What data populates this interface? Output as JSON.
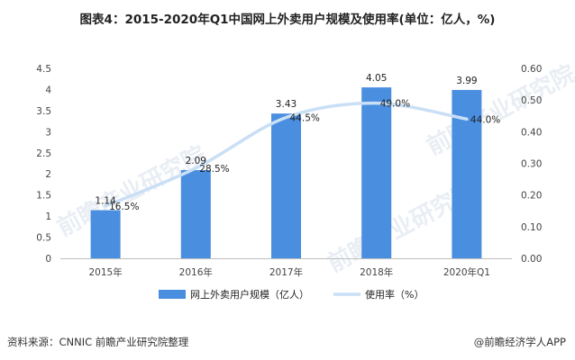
{
  "chart_data": {
    "type": "bar",
    "title": "图表4：2015-2020年Q1中国网上外卖用户规模及使用率(单位：亿人，%)",
    "categories": [
      "2015年",
      "2016年",
      "2017年",
      "2018年",
      "2020年Q1"
    ],
    "series": [
      {
        "name": "网上外卖用户规模（亿人）",
        "type": "bar",
        "axis": "left",
        "values": [
          1.14,
          2.09,
          3.43,
          4.05,
          3.99
        ],
        "labels": [
          "1.14",
          "2.09",
          "3.43",
          "4.05",
          "3.99"
        ],
        "color": "#4a8ee0"
      },
      {
        "name": "使用率（%）",
        "type": "line",
        "axis": "right",
        "values": [
          0.165,
          0.285,
          0.445,
          0.49,
          0.44
        ],
        "labels": [
          "16.5%",
          "28.5%",
          "44.5%",
          "49.0%",
          "44.0%"
        ],
        "color": "#c9dff5",
        "smooth": true
      }
    ],
    "y_left": {
      "range": [
        0,
        4.5
      ],
      "ticks": [
        "0",
        "0.5",
        "1",
        "1.5",
        "2",
        "2.5",
        "3",
        "3.5",
        "4",
        "4.5"
      ]
    },
    "y_right": {
      "range": [
        0,
        0.6
      ],
      "ticks": [
        "0.00",
        "0.10",
        "0.20",
        "0.30",
        "0.40",
        "0.50",
        "0.60"
      ]
    },
    "grid": false,
    "legend_position": "bottom"
  },
  "footer": {
    "source": "资料来源：CNNIC 前瞻产业研究院整理",
    "brand": "@前瞻经济学人APP"
  },
  "watermark": {
    "text": "前瞻产业研究院"
  }
}
